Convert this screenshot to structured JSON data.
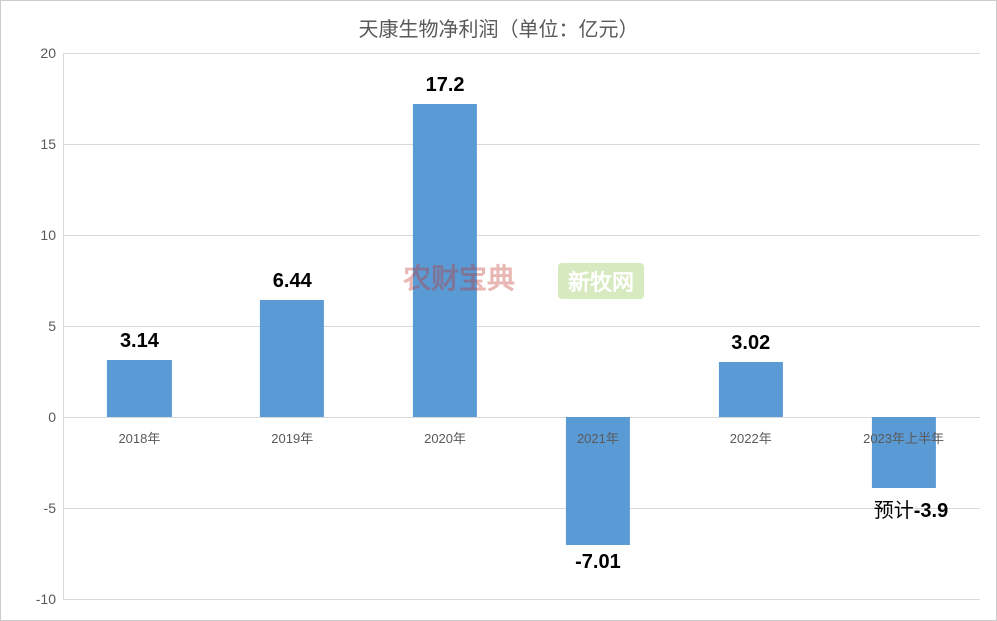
{
  "chart": {
    "type": "bar",
    "title": "天康生物净利润（单位：亿元）",
    "title_fontsize": 20,
    "title_color": "#595959",
    "background_color": "#ffffff",
    "border_color": "#cccccc",
    "y_axis_line_color": "#d9d9d9",
    "grid_color": "#d9d9d9",
    "yticks": [
      -10,
      -5,
      0,
      5,
      10,
      15,
      20
    ],
    "ylim_min": -10,
    "ylim_max": 20,
    "ytick_label_fontsize": 14,
    "ytick_label_color": "#595959",
    "x_label_fontsize": 13,
    "x_label_color": "#595959",
    "data_label_fontsize": 20,
    "data_label_color": "#000000",
    "bar_color": "#5b9bd5",
    "bar_width_ratio": 0.42,
    "categories": [
      "2018年",
      "2019年",
      "2020年",
      "2021年",
      "2022年",
      "2023年上半年"
    ],
    "values": [
      3.14,
      6.44,
      17.2,
      -7.01,
      3.02,
      -3.9
    ],
    "value_labels": [
      "3.14",
      "6.44",
      "17.2",
      "-7.01",
      "3.02",
      "-3.9"
    ],
    "value_label_prefixes": [
      "",
      "",
      "",
      "",
      "",
      "预计"
    ]
  },
  "watermarks": {
    "left_text": "农财宝典",
    "left_color": "#c03028",
    "right_text": "新牧网",
    "right_bg": "#8bc34a",
    "right_color": "#ffffff"
  }
}
